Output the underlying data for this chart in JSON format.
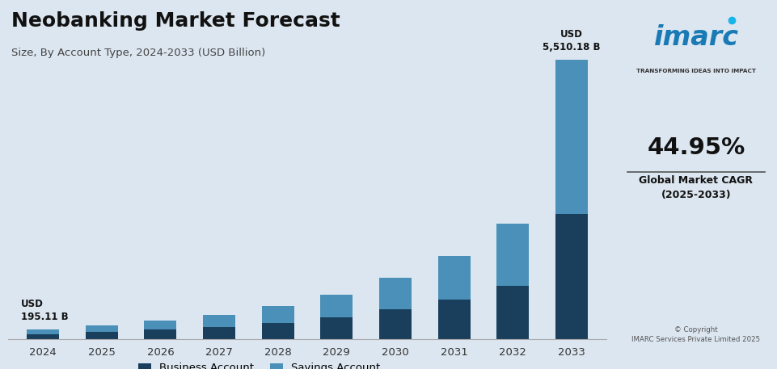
{
  "title": "Neobanking Market Forecast",
  "subtitle": "Size, By Account Type, 2024-2033 (USD Billion)",
  "years": [
    2024,
    2025,
    2026,
    2027,
    2028,
    2029,
    2030,
    2031,
    2032,
    2033
  ],
  "business_account": [
    105,
    145,
    195,
    250,
    330,
    440,
    590,
    790,
    1060,
    2480
  ],
  "savings_account": [
    90,
    130,
    185,
    240,
    330,
    450,
    620,
    850,
    1230,
    3030
  ],
  "annotation_first": "USD\n195.11 B",
  "annotation_last": "USD\n5,510.18 B",
  "business_color": "#1a3f5c",
  "savings_color": "#4a90b8",
  "bg_color": "#dce6f0",
  "right_panel_bg": "#f0f5fa",
  "legend_business": "Business Account",
  "legend_savings": "Savings Account",
  "cagr_text": "44.95%",
  "cagr_label": "Global Market CAGR\n(2025-2033)",
  "copyright": "© Copyright\nIMARC Services Private Limited 2025"
}
